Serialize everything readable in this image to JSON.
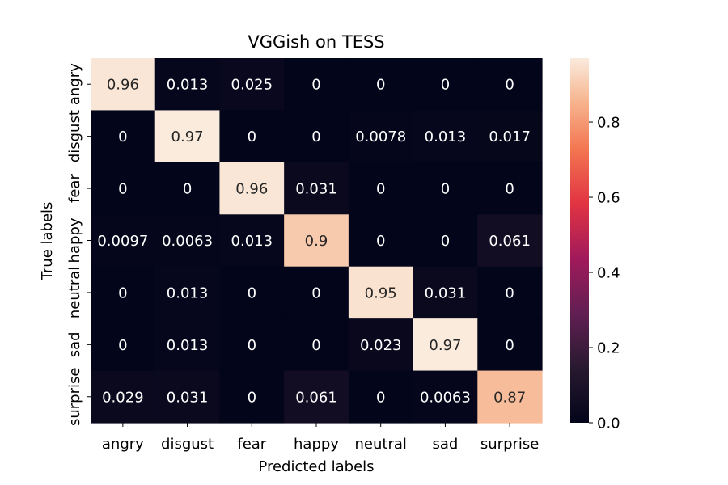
{
  "chart_data": {
    "type": "heatmap",
    "title": "VGGish on TESS",
    "xlabel": "Predicted labels",
    "ylabel": "True labels",
    "x_categories": [
      "angry",
      "disgust",
      "fear",
      "happy",
      "neutral",
      "sad",
      "surprise"
    ],
    "y_categories": [
      "angry",
      "disgust",
      "fear",
      "happy",
      "neutral",
      "sad",
      "surprise"
    ],
    "values": [
      [
        0.96,
        0.013,
        0.025,
        0,
        0,
        0,
        0
      ],
      [
        0,
        0.97,
        0,
        0,
        0.0078,
        0.013,
        0.017
      ],
      [
        0,
        0,
        0.96,
        0.031,
        0,
        0,
        0
      ],
      [
        0.0097,
        0.0063,
        0.013,
        0.9,
        0,
        0,
        0.061
      ],
      [
        0,
        0.013,
        0,
        0,
        0.95,
        0.031,
        0
      ],
      [
        0,
        0.013,
        0,
        0,
        0.023,
        0.97,
        0
      ],
      [
        0.029,
        0.031,
        0,
        0.061,
        0,
        0.0063,
        0.87
      ]
    ],
    "value_labels": [
      [
        "0.96",
        "0.013",
        "0.025",
        "0",
        "0",
        "0",
        "0"
      ],
      [
        "0",
        "0.97",
        "0",
        "0",
        "0.0078",
        "0.013",
        "0.017"
      ],
      [
        "0",
        "0",
        "0.96",
        "0.031",
        "0",
        "0",
        "0"
      ],
      [
        "0.0097",
        "0.0063",
        "0.013",
        "0.9",
        "0",
        "0",
        "0.061"
      ],
      [
        "0",
        "0.013",
        "0",
        "0",
        "0.95",
        "0.031",
        "0"
      ],
      [
        "0",
        "0.013",
        "0",
        "0",
        "0.023",
        "0.97",
        "0"
      ],
      [
        "0.029",
        "0.031",
        "0",
        "0.061",
        "0",
        "0.0063",
        "0.87"
      ]
    ],
    "colormap": "rocket",
    "colorbar": {
      "range": [
        0,
        0.97
      ],
      "ticks": [
        0.0,
        0.2,
        0.4,
        0.6,
        0.8
      ],
      "tick_labels": [
        "0.0",
        "0.2",
        "0.4",
        "0.6",
        "0.8"
      ]
    },
    "grid": false,
    "legend": "colorbar-right"
  }
}
